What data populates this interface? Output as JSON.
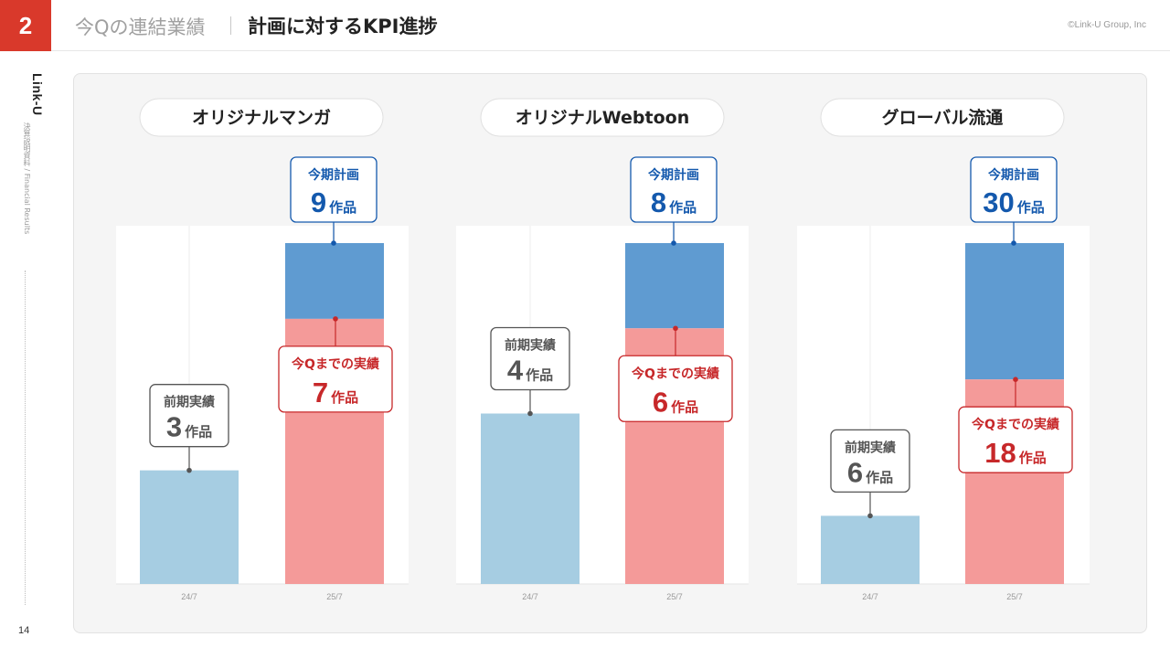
{
  "header": {
    "section_number": "2",
    "subtitle": "今Qの連結業績",
    "title": "計画に対するKPI進捗",
    "copyright": "©Link-U Group, Inc"
  },
  "sidebar": {
    "brand": "Link-U",
    "document": "決算説明資料 / Financial Results"
  },
  "footer": {
    "page_number": "14"
  },
  "colors": {
    "accent_red": "#d9392b",
    "prior_bar": "#a6cde2",
    "plan_bar": "#5f9bd1",
    "actual_bar": "#f49a99",
    "plan_text": "#1459ad",
    "actual_text": "#c7282a",
    "prior_text": "#555555"
  },
  "labels": {
    "prior": "前期実績",
    "plan": "今期計画",
    "actual": "今Qまでの実績",
    "unit": "作品"
  },
  "chart_data": [
    {
      "type": "bar",
      "title": "オリジナルマンガ",
      "categories": [
        "24/7",
        "25/7"
      ],
      "series": [
        {
          "name": "前期実績",
          "values": [
            3,
            null
          ]
        },
        {
          "name": "今Qまでの実績",
          "values": [
            null,
            7
          ]
        },
        {
          "name": "今期計画",
          "values": [
            null,
            9
          ]
        }
      ],
      "ylim": [
        0,
        9
      ],
      "grid": true,
      "display": {
        "prior": "3",
        "plan": "9",
        "actual": "7"
      }
    },
    {
      "type": "bar",
      "title": "オリジナルWebtoon",
      "categories": [
        "24/7",
        "25/7"
      ],
      "series": [
        {
          "name": "前期実績",
          "values": [
            4,
            null
          ]
        },
        {
          "name": "今Qまでの実績",
          "values": [
            null,
            6
          ]
        },
        {
          "name": "今期計画",
          "values": [
            null,
            8
          ]
        }
      ],
      "ylim": [
        0,
        8
      ],
      "grid": true,
      "display": {
        "prior": "4",
        "plan": "8",
        "actual": "6"
      }
    },
    {
      "type": "bar",
      "title": "グローバル流通",
      "categories": [
        "24/7",
        "25/7"
      ],
      "series": [
        {
          "name": "前期実績",
          "values": [
            6,
            null
          ]
        },
        {
          "name": "今Qまでの実績",
          "values": [
            null,
            18
          ]
        },
        {
          "name": "今期計画",
          "values": [
            null,
            30
          ]
        }
      ],
      "ylim": [
        0,
        30
      ],
      "grid": true,
      "display": {
        "prior": "6",
        "plan": "30",
        "actual": "18"
      }
    }
  ]
}
